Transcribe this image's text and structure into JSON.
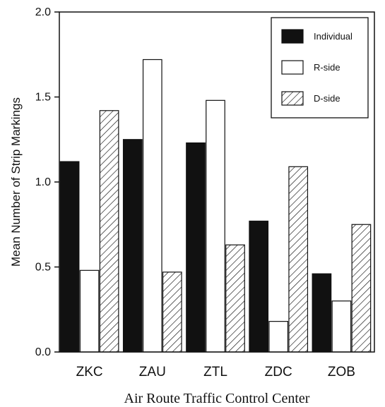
{
  "chart_data": {
    "type": "bar",
    "title": "",
    "xlabel": "Air Route Traffic Control Center",
    "ylabel": "Mean Number of Strip Markings",
    "ylim": [
      0,
      2.0
    ],
    "yticks": [
      "0.0",
      "0.5",
      "1.0",
      "1.5",
      "2.0"
    ],
    "categories": [
      "ZKC",
      "ZAU",
      "ZTL",
      "ZDC",
      "ZOB"
    ],
    "series": [
      {
        "name": "Individual",
        "fill": "solid",
        "color": "#111111",
        "values": [
          1.12,
          1.25,
          1.23,
          0.77,
          0.46
        ]
      },
      {
        "name": "R-side",
        "fill": "open",
        "color": "#ffffff",
        "values": [
          0.48,
          1.72,
          1.48,
          0.18,
          0.3
        ]
      },
      {
        "name": "D-side",
        "fill": "hatched",
        "color": "#ffffff",
        "values": [
          1.42,
          0.47,
          0.63,
          1.09,
          0.75
        ]
      }
    ],
    "grid": false,
    "legend_position": "top-right"
  }
}
